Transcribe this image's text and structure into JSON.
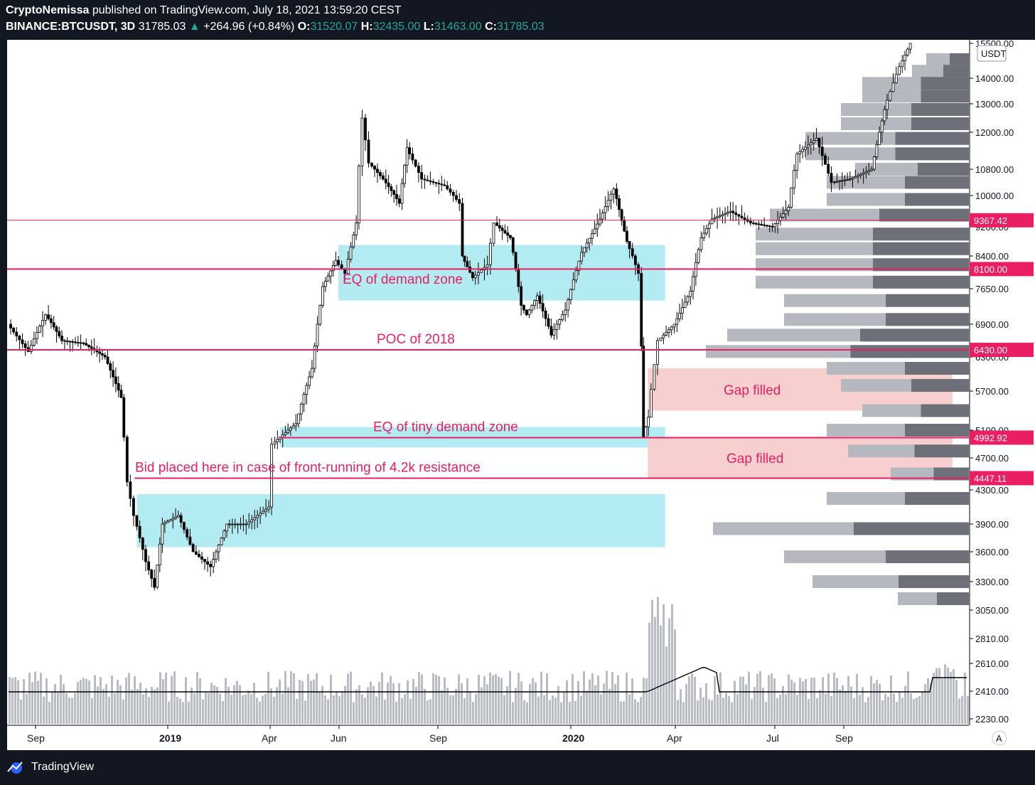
{
  "header": {
    "author": "CryptoNemissa",
    "published_text": "published on TradingView.com, July 18, 2021 13:59:20 CEST",
    "symbol": "BINANCE:BTCUSDT, 3D",
    "last": "31785.03",
    "change_arrow": "▲",
    "change": "+264.96 (+0.84%)",
    "o_label": "O:",
    "o": "31520.07",
    "h_label": "H:",
    "h": "32435.00",
    "l_label": "L:",
    "l": "31463.00",
    "c_label": "C:",
    "c": "31785.03"
  },
  "footer": {
    "brand": "TradingView"
  },
  "chart_data": {
    "type": "candlestick",
    "title": "",
    "currency": "USDT",
    "y_axis": {
      "ticks": [
        "15500.00",
        "14000.00",
        "13000.00",
        "12000.00",
        "10800.00",
        "10000.00",
        "9200.00",
        "8400.00",
        "7650.00",
        "6900.00",
        "6300.00",
        "5700.00",
        "5100.00",
        "4700.00",
        "4300.00",
        "3900.00",
        "3600.00",
        "3300.00",
        "3050.00",
        "2810.00",
        "2610.00",
        "2410.00",
        "2230.00"
      ],
      "price_labels": [
        "9367.42",
        "8100.00",
        "6430.00",
        "4992.92",
        "4447.11"
      ]
    },
    "x_axis": {
      "ticks": [
        "Sep",
        "2019",
        "Apr",
        "Jun",
        "Sep",
        "2020",
        "Apr",
        "Jul",
        "Sep"
      ],
      "bold_ticks": [
        "2019",
        "2020"
      ]
    },
    "ohlc_path_closes": [
      {
        "date": "2018-08-01",
        "close": 6900
      },
      {
        "date": "2018-08-20",
        "close": 6400
      },
      {
        "date": "2018-09-05",
        "close": 7100
      },
      {
        "date": "2018-09-20",
        "close": 6600
      },
      {
        "date": "2018-10-10",
        "close": 6550
      },
      {
        "date": "2018-10-30",
        "close": 6300
      },
      {
        "date": "2018-11-14",
        "close": 5600
      },
      {
        "date": "2018-11-20",
        "close": 4400
      },
      {
        "date": "2018-11-26",
        "close": 4000
      },
      {
        "date": "2018-12-07",
        "close": 3500
      },
      {
        "date": "2018-12-15",
        "close": 3250
      },
      {
        "date": "2018-12-22",
        "close": 3900
      },
      {
        "date": "2019-01-06",
        "close": 4000
      },
      {
        "date": "2019-01-20",
        "close": 3600
      },
      {
        "date": "2019-02-05",
        "close": 3450
      },
      {
        "date": "2019-02-20",
        "close": 3900
      },
      {
        "date": "2019-03-10",
        "close": 3900
      },
      {
        "date": "2019-03-31",
        "close": 4100
      },
      {
        "date": "2019-04-03",
        "close": 4900
      },
      {
        "date": "2019-04-25",
        "close": 5200
      },
      {
        "date": "2019-05-10",
        "close": 6100
      },
      {
        "date": "2019-05-20",
        "close": 7700
      },
      {
        "date": "2019-06-01",
        "close": 8300
      },
      {
        "date": "2019-06-10",
        "close": 8000
      },
      {
        "date": "2019-06-20",
        "close": 9300
      },
      {
        "date": "2019-06-26",
        "close": 12500
      },
      {
        "date": "2019-07-02",
        "close": 11000
      },
      {
        "date": "2019-07-15",
        "close": 10500
      },
      {
        "date": "2019-07-30",
        "close": 9800
      },
      {
        "date": "2019-08-06",
        "close": 11500
      },
      {
        "date": "2019-08-20",
        "close": 10500
      },
      {
        "date": "2019-09-10",
        "close": 10300
      },
      {
        "date": "2019-09-24",
        "close": 9800
      },
      {
        "date": "2019-09-26",
        "close": 8400
      },
      {
        "date": "2019-10-06",
        "close": 7900
      },
      {
        "date": "2019-10-20",
        "close": 8200
      },
      {
        "date": "2019-10-26",
        "close": 9300
      },
      {
        "date": "2019-11-10",
        "close": 8900
      },
      {
        "date": "2019-11-20",
        "close": 7300
      },
      {
        "date": "2019-11-25",
        "close": 7100
      },
      {
        "date": "2019-12-05",
        "close": 7500
      },
      {
        "date": "2019-12-18",
        "close": 6700
      },
      {
        "date": "2019-12-31",
        "close": 7200
      },
      {
        "date": "2020-01-15",
        "close": 8500
      },
      {
        "date": "2020-02-01",
        "close": 9400
      },
      {
        "date": "2020-02-14",
        "close": 10200
      },
      {
        "date": "2020-02-26",
        "close": 8800
      },
      {
        "date": "2020-03-08",
        "close": 8000
      },
      {
        "date": "2020-03-12",
        "close": 5000
      },
      {
        "date": "2020-03-17",
        "close": 5300
      },
      {
        "date": "2020-03-26",
        "close": 6600
      },
      {
        "date": "2020-04-10",
        "close": 6900
      },
      {
        "date": "2020-04-25",
        "close": 7600
      },
      {
        "date": "2020-05-05",
        "close": 8900
      },
      {
        "date": "2020-05-15",
        "close": 9400
      },
      {
        "date": "2020-06-01",
        "close": 9600
      },
      {
        "date": "2020-06-20",
        "close": 9300
      },
      {
        "date": "2020-07-10",
        "close": 9200
      },
      {
        "date": "2020-07-25",
        "close": 9700
      },
      {
        "date": "2020-08-02",
        "close": 11300
      },
      {
        "date": "2020-08-20",
        "close": 11800
      },
      {
        "date": "2020-09-03",
        "close": 10400
      },
      {
        "date": "2020-09-20",
        "close": 10500
      },
      {
        "date": "2020-10-10",
        "close": 10800
      },
      {
        "date": "2020-10-22",
        "close": 12800
      },
      {
        "date": "2020-11-05",
        "close": 14500
      },
      {
        "date": "2020-11-15",
        "close": 15500
      }
    ],
    "volume_ma_overlay": true,
    "volume_profile": true,
    "annotations": {
      "horizontal_lines": [
        {
          "price": 9367.42
        },
        {
          "price": 8100.0
        },
        {
          "price": 6430.0,
          "label": "POC of 2018"
        },
        {
          "price": 4992.92,
          "label": "EQ of tiny demand zone"
        },
        {
          "price": 4447.11,
          "label": "Bid placed here in case of front-running of 4.2k resistance"
        }
      ],
      "demand_zones": [
        {
          "label": "EQ of demand zone",
          "from": "2019-06-01",
          "to": "2020-03-30",
          "low": 7400,
          "high": 8700
        },
        {
          "label": "",
          "from": "2019-04-08",
          "to": "2020-03-30",
          "low": 4850,
          "high": 5150
        },
        {
          "label": "",
          "from": "2018-11-26",
          "to": "2020-03-30",
          "low": 3650,
          "high": 4250
        }
      ],
      "gap_zones": [
        {
          "label": "Gap filled",
          "low": 5400,
          "high": 6100
        },
        {
          "label": "Gap filled",
          "low": 4447.11,
          "high": 4992.92
        }
      ]
    }
  },
  "colors": {
    "bg_dark": "#131722",
    "accent_line": "#e91e63",
    "demand_zone": "#b2ebf2",
    "gap_zone": "#f8cfcf",
    "candle": "#000000",
    "volume": "#b9bcc4",
    "up_text": "#26a69a"
  }
}
